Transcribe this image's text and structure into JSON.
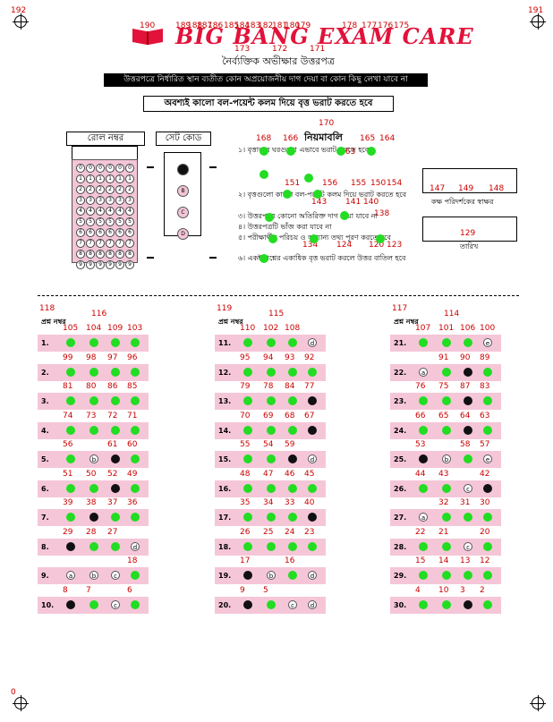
{
  "header": {
    "title": "BIG BANG EXAM CARE",
    "subtitle": "নৈর্ব্যক্তিক অভীক্ষার উত্তরপত্র",
    "warning": "উত্তরপত্রে নির্ধারিত স্থান ব্যতীত কোন অপ্রয়োজনীয় দাগ দেয়া বা কোন কিছু লেখা যাবে না",
    "instruction_box": "অবশ্যই কালো বল-পয়েন্ট কলম দিয়ে বৃত্ত ভরাট করতে হবে"
  },
  "registration_marks": {
    "top_left": "192",
    "top_right": "191",
    "bottom_left": "0"
  },
  "top_labels": [
    "190",
    "189",
    "188",
    "187",
    "186",
    "185",
    "184",
    "183",
    "182",
    "181",
    "180",
    "179",
    "178",
    "177",
    "176",
    "175",
    "173",
    "172",
    "171"
  ],
  "roll": {
    "label": "রোল নম্বর",
    "digits": [
      "0",
      "1",
      "2",
      "3",
      "4",
      "5",
      "6",
      "7",
      "8",
      "9"
    ]
  },
  "set_code": {
    "label": "সেট কোড",
    "options": [
      "A",
      "B",
      "C",
      "D"
    ]
  },
  "instructions": {
    "heading": "নিয়মাবলি",
    "heading_num": "170",
    "lines": [
      "১। বৃত্তাকার ঘরগুলো এভাবে ভরাট করতে হবে",
      "২। বৃত্তগুলো কালো বল-পয়েন্ট কলম দিয়ে ভরাট করতে হবে",
      "৩। উত্তরপত্রে কোনো অতিরিক্ত দাগ দেয়া যাবে না",
      "৪। উত্তরপত্রটি ভাঁজ করা যাবে না",
      "৫। পরীক্ষার্থীর পরিচয় ও অন্যান্য তথ্য পূরণ করতে হবে",
      "৬। একই প্রশ্নের একাধিক বৃত্ত ভরাট করলে উত্তর বাতিল হবে"
    ],
    "nums": [
      "168",
      "166",
      "165",
      "164",
      "163",
      "151",
      "156",
      "155",
      "150",
      "154",
      "143",
      "141",
      "140",
      "138",
      "134",
      "124",
      "120",
      "123"
    ]
  },
  "side": {
    "invigilator_label": "কক্ষ পরিদর্শকের স্বাক্ষর",
    "date_label": "তারিখ",
    "nums": [
      "147",
      "149",
      "148",
      "129"
    ]
  },
  "answer_header": "প্রশ্ন নম্বর",
  "columns": [
    {
      "head_nums": [
        "118",
        "116"
      ],
      "rows": [
        {
          "q": "1.",
          "labels": [
            "105",
            "104",
            "109",
            "103"
          ],
          "marks": [
            "g",
            "g",
            "g",
            "g"
          ]
        },
        {
          "q": "2.",
          "labels": [
            "99",
            "98",
            "97",
            "96"
          ],
          "marks": [
            "g",
            "g",
            "g",
            "g"
          ]
        },
        {
          "q": "3.",
          "labels": [
            "81",
            "80",
            "86",
            "85"
          ],
          "marks": [
            "g",
            "g",
            "g",
            "g"
          ]
        },
        {
          "q": "4.",
          "labels": [
            "74",
            "73",
            "72",
            "71"
          ],
          "marks": [
            "g",
            "g",
            "g",
            "g"
          ]
        },
        {
          "q": "5.",
          "labels": [
            "56",
            "",
            "61",
            "60"
          ],
          "marks": [
            "g",
            "b",
            "k",
            "g"
          ]
        },
        {
          "q": "6.",
          "labels": [
            "51",
            "50",
            "52",
            "49"
          ],
          "marks": [
            "g",
            "g",
            "k",
            "g"
          ]
        },
        {
          "q": "7.",
          "labels": [
            "39",
            "38",
            "37",
            "36"
          ],
          "marks": [
            "g",
            "k",
            "g",
            "g"
          ]
        },
        {
          "q": "8.",
          "labels": [
            "29",
            "28",
            "27",
            ""
          ],
          "marks": [
            "k",
            "g",
            "g",
            "d"
          ]
        },
        {
          "q": "9.",
          "labels": [
            "",
            "",
            "",
            "18"
          ],
          "marks": [
            "a",
            "b",
            "c",
            "g"
          ]
        },
        {
          "q": "10.",
          "labels": [
            "8",
            "7",
            "",
            "6"
          ],
          "marks": [
            "k",
            "g",
            "c",
            "g"
          ]
        }
      ]
    },
    {
      "head_nums": [
        "119",
        "115"
      ],
      "rows": [
        {
          "q": "11.",
          "labels": [
            "110",
            "102",
            "108",
            ""
          ],
          "marks": [
            "g",
            "g",
            "g",
            "d"
          ]
        },
        {
          "q": "12.",
          "labels": [
            "95",
            "94",
            "93",
            "92"
          ],
          "marks": [
            "g",
            "g",
            "g",
            "g"
          ]
        },
        {
          "q": "13.",
          "labels": [
            "79",
            "78",
            "84",
            "77"
          ],
          "marks": [
            "g",
            "g",
            "g",
            "k"
          ]
        },
        {
          "q": "14.",
          "labels": [
            "70",
            "69",
            "68",
            "67"
          ],
          "marks": [
            "g",
            "g",
            "g",
            "k"
          ]
        },
        {
          "q": "15.",
          "labels": [
            "55",
            "54",
            "59",
            ""
          ],
          "marks": [
            "g",
            "g",
            "k",
            "d"
          ]
        },
        {
          "q": "16.",
          "labels": [
            "48",
            "47",
            "46",
            "45"
          ],
          "marks": [
            "g",
            "g",
            "g",
            "g"
          ]
        },
        {
          "q": "17.",
          "labels": [
            "35",
            "34",
            "33",
            "40"
          ],
          "marks": [
            "g",
            "g",
            "g",
            "k"
          ]
        },
        {
          "q": "18.",
          "labels": [
            "26",
            "25",
            "24",
            "23"
          ],
          "marks": [
            "g",
            "g",
            "g",
            "g"
          ]
        },
        {
          "q": "19.",
          "labels": [
            "17",
            "",
            "16",
            ""
          ],
          "marks": [
            "k",
            "b",
            "g",
            "d"
          ]
        },
        {
          "q": "20.",
          "labels": [
            "9",
            "5",
            "",
            ""
          ],
          "marks": [
            "k",
            "g",
            "c",
            "d"
          ]
        }
      ]
    },
    {
      "head_nums": [
        "117",
        "114"
      ],
      "rows": [
        {
          "q": "21.",
          "labels": [
            "107",
            "101",
            "106",
            "100"
          ],
          "marks": [
            "g",
            "g",
            "g",
            "e"
          ]
        },
        {
          "q": "22.",
          "labels": [
            "",
            "91",
            "90",
            "89"
          ],
          "marks": [
            "a",
            "g",
            "k",
            "g"
          ]
        },
        {
          "q": "23.",
          "labels": [
            "76",
            "75",
            "87",
            "83"
          ],
          "marks": [
            "g",
            "g",
            "k",
            "g"
          ]
        },
        {
          "q": "24.",
          "labels": [
            "66",
            "65",
            "64",
            "63"
          ],
          "marks": [
            "g",
            "g",
            "k",
            "g"
          ]
        },
        {
          "q": "25.",
          "labels": [
            "53",
            "",
            "58",
            "57"
          ],
          "marks": [
            "k",
            "b",
            "g",
            "e"
          ]
        },
        {
          "q": "26.",
          "labels": [
            "44",
            "43",
            "",
            "42"
          ],
          "marks": [
            "g",
            "g",
            "c",
            "k"
          ]
        },
        {
          "q": "27.",
          "labels": [
            "",
            "32",
            "31",
            "30"
          ],
          "marks": [
            "a",
            "g",
            "g",
            "g"
          ]
        },
        {
          "q": "28.",
          "labels": [
            "22",
            "21",
            "",
            "20"
          ],
          "marks": [
            "g",
            "g",
            "c",
            "g"
          ]
        },
        {
          "q": "29.",
          "labels": [
            "15",
            "14",
            "13",
            "12"
          ],
          "marks": [
            "g",
            "g",
            "g",
            "g"
          ]
        },
        {
          "q": "30.",
          "labels": [
            "4",
            "10",
            "3",
            "2"
          ],
          "marks": [
            "g",
            "g",
            "k",
            "g"
          ]
        }
      ]
    }
  ]
}
